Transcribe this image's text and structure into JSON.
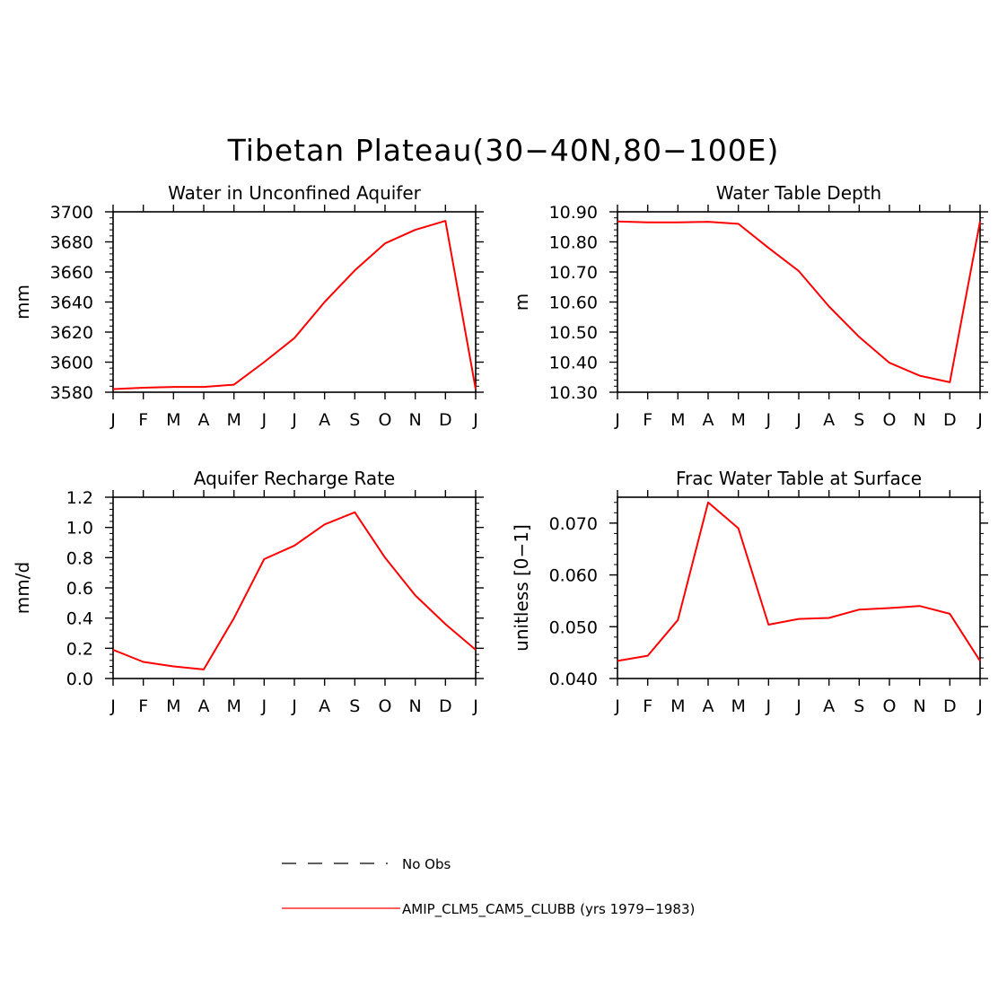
{
  "title": "Tibetan Plateau(30−40N,80−100E)",
  "colors": {
    "model": "#ff0000",
    "obs": "#000000",
    "axis": "#000000"
  },
  "legend": [
    {
      "label": "No Obs",
      "style": "dashed",
      "color": "#000000"
    },
    {
      "label": "AMIP_CLM5_CAM5_CLUBB (yrs 1979−1983)",
      "style": "solid",
      "color": "#ff0000"
    }
  ],
  "chart_data": [
    {
      "type": "line",
      "title": "Water in Unconfined Aquifer",
      "ylabel": "mm",
      "categories": [
        "J",
        "F",
        "M",
        "A",
        "M",
        "J",
        "J",
        "A",
        "S",
        "O",
        "N",
        "D",
        "J"
      ],
      "ylim": [
        3580,
        3700
      ],
      "yticks": [
        3580,
        3600,
        3620,
        3640,
        3660,
        3680,
        3700
      ],
      "ytick_labels": [
        "3580",
        "3600",
        "3620",
        "3640",
        "3660",
        "3680",
        "3700"
      ],
      "series": [
        {
          "values": [
            3582,
            3583,
            3583.5,
            3583.5,
            3585,
            3600,
            3616,
            3640,
            3661,
            3679,
            3688,
            3694,
            3582
          ]
        }
      ]
    },
    {
      "type": "line",
      "title": "Water Table Depth",
      "ylabel": "m",
      "categories": [
        "J",
        "F",
        "M",
        "A",
        "M",
        "J",
        "J",
        "A",
        "S",
        "O",
        "N",
        "D",
        "J"
      ],
      "ylim": [
        10.3,
        10.9
      ],
      "yticks": [
        10.3,
        10.4,
        10.5,
        10.6,
        10.7,
        10.8,
        10.9
      ],
      "ytick_labels": [
        "10.30",
        "10.40",
        "10.50",
        "10.60",
        "10.70",
        "10.80",
        "10.90"
      ],
      "series": [
        {
          "values": [
            10.868,
            10.865,
            10.865,
            10.867,
            10.86,
            10.78,
            10.703,
            10.585,
            10.484,
            10.398,
            10.355,
            10.333,
            10.868
          ]
        }
      ]
    },
    {
      "type": "line",
      "title": "Aquifer Recharge Rate",
      "ylabel": "mm/d",
      "categories": [
        "J",
        "F",
        "M",
        "A",
        "M",
        "J",
        "J",
        "A",
        "S",
        "O",
        "N",
        "D",
        "J"
      ],
      "ylim": [
        0.0,
        1.2
      ],
      "yticks": [
        0.0,
        0.2,
        0.4,
        0.6,
        0.8,
        1.0,
        1.2
      ],
      "ytick_labels": [
        "0.0",
        "0.2",
        "0.4",
        "0.6",
        "0.8",
        "1.0",
        "1.2"
      ],
      "series": [
        {
          "values": [
            0.19,
            0.11,
            0.08,
            0.06,
            0.4,
            0.79,
            0.88,
            1.02,
            1.1,
            0.8,
            0.55,
            0.36,
            0.19
          ]
        }
      ]
    },
    {
      "type": "line",
      "title": "Frac Water Table at Surface",
      "ylabel": "unitless [0−1]",
      "categories": [
        "J",
        "F",
        "M",
        "A",
        "M",
        "J",
        "J",
        "A",
        "S",
        "O",
        "N",
        "D",
        "J"
      ],
      "ylim": [
        0.04,
        0.075
      ],
      "yticks": [
        0.04,
        0.05,
        0.06,
        0.07
      ],
      "ytick_labels": [
        "0.040",
        "0.050",
        "0.060",
        "0.070"
      ],
      "series": [
        {
          "values": [
            0.0434,
            0.0444,
            0.0513,
            0.074,
            0.069,
            0.0504,
            0.0515,
            0.0517,
            0.0533,
            0.0536,
            0.054,
            0.0525,
            0.0434
          ]
        }
      ]
    }
  ]
}
